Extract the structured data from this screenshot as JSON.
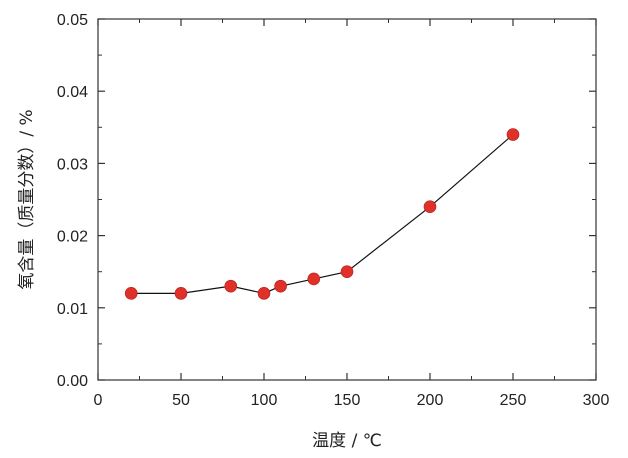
{
  "chart_data": {
    "type": "scatter",
    "title": "",
    "xlabel": "温度 / ℃",
    "ylabel": "氧含量（质量分数）/ %",
    "xlim": [
      0,
      300
    ],
    "ylim": [
      0.0,
      0.05
    ],
    "xticks": [
      "0",
      "50",
      "100",
      "150",
      "200",
      "250",
      "300"
    ],
    "yticks": [
      "0.00",
      "0.01",
      "0.02",
      "0.03",
      "0.04",
      "0.05"
    ],
    "grid": false,
    "legend": "none",
    "connected": true,
    "colors": {
      "marker": "#e0302a",
      "line": "#111111",
      "axis": "#333333"
    },
    "series": [
      {
        "x": [
          20,
          50,
          80,
          100,
          110,
          130,
          150,
          200,
          250
        ],
        "y": [
          0.012,
          0.012,
          0.013,
          0.012,
          0.013,
          0.014,
          0.015,
          0.024,
          0.034
        ]
      }
    ]
  }
}
